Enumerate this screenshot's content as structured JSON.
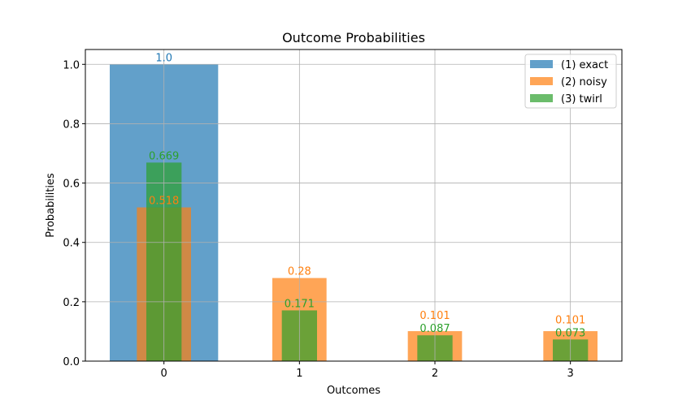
{
  "chart_data": {
    "type": "bar",
    "title": "Outcome Probabilities",
    "xlabel": "Outcomes",
    "ylabel": "Probabilities",
    "categories": [
      "0",
      "1",
      "2",
      "3"
    ],
    "xlim": [
      -0.58,
      3.38
    ],
    "ylim": [
      0,
      1.05
    ],
    "yticks": [
      "0.0",
      "0.2",
      "0.4",
      "0.6",
      "0.8",
      "1.0"
    ],
    "grid": true,
    "legend_position": "top-right",
    "series": [
      {
        "name": "(1) exact",
        "color": "#1f77b4",
        "bar_width": 0.8,
        "values": [
          1.0,
          null,
          null,
          null
        ],
        "labels": [
          "1.0",
          null,
          null,
          null
        ]
      },
      {
        "name": "(2) noisy",
        "color": "#ff7f0e",
        "bar_width": 0.4,
        "values": [
          0.518,
          0.28,
          0.101,
          0.101
        ],
        "labels": [
          "0.518",
          "0.28",
          "0.101",
          "0.101"
        ]
      },
      {
        "name": "(3) twirl",
        "color": "#2ca02c",
        "bar_width": 0.26,
        "values": [
          0.669,
          0.171,
          0.087,
          0.073
        ],
        "labels": [
          "0.669",
          "0.171",
          "0.087",
          "0.073"
        ]
      }
    ]
  }
}
